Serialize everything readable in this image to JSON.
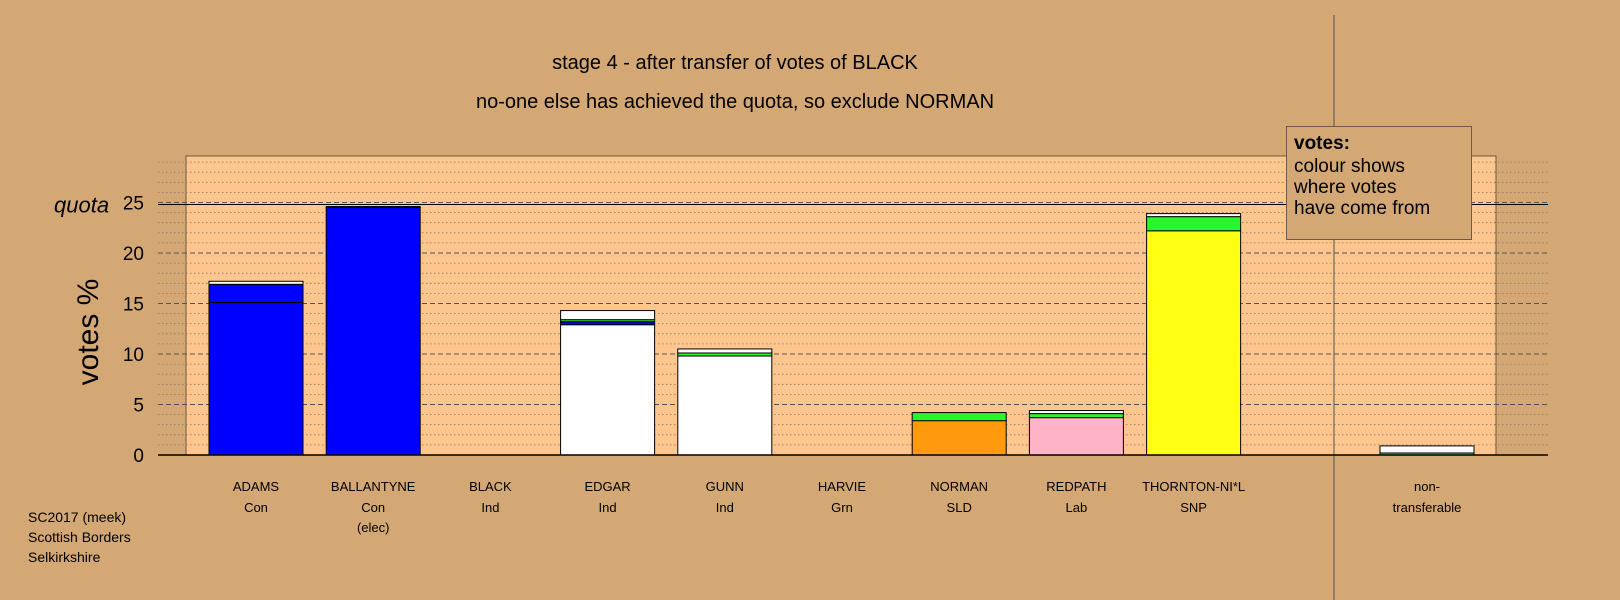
{
  "title_lines": [
    "stage 4 - after transfer of votes of BLACK",
    "no-one else has achieved the quota, so exclude NORMAN"
  ],
  "footer_lines": [
    "SC2017 (meek)",
    "Scottish Borders",
    "Selkirkshire"
  ],
  "legend": {
    "heading": "votes:",
    "lines": [
      "colour shows",
      "where votes",
      "have come from"
    ]
  },
  "colors": {
    "background": "#d4a874",
    "plot_area": "#fdc68e",
    "Con": "#0000ff",
    "Ind": "#ffffff",
    "SLD": "#ff9a0e",
    "Lab": "#ffb3c7",
    "SNP": "#ffff14",
    "Grn": "#2bf52b"
  },
  "chart_data": {
    "type": "bar",
    "stacked": true,
    "ylabel": "votes %",
    "quota_label": "quota",
    "quota": 24.8,
    "ylim": [
      0,
      30
    ],
    "yticks": [
      0,
      5,
      10,
      15,
      20,
      25
    ],
    "grid": true,
    "categories": [
      {
        "name": "ADAMS",
        "party": "Con",
        "note": ""
      },
      {
        "name": "BALLANTYNE",
        "party": "Con",
        "note": "(elec)"
      },
      {
        "name": "BLACK",
        "party": "Ind",
        "note": ""
      },
      {
        "name": "EDGAR",
        "party": "Ind",
        "note": ""
      },
      {
        "name": "GUNN",
        "party": "Ind",
        "note": ""
      },
      {
        "name": "HARVIE",
        "party": "Grn",
        "note": ""
      },
      {
        "name": "NORMAN",
        "party": "SLD",
        "note": ""
      },
      {
        "name": "REDPATH",
        "party": "Lab",
        "note": ""
      },
      {
        "name": "THORNTON-NI*L",
        "party": "SNP",
        "note": ""
      }
    ],
    "nontransferable": {
      "label_lines": [
        "non-",
        "transferable"
      ],
      "segments": [
        {
          "source": "Grn",
          "value": 0.2
        },
        {
          "source": "Ind",
          "value": 0.7
        }
      ]
    },
    "bars": [
      {
        "segments": [
          {
            "source": "Con",
            "value": 15.1
          },
          {
            "source": "Con",
            "value": 1.8
          },
          {
            "source": "Ind",
            "value": 0.3
          }
        ]
      },
      {
        "segments": [
          {
            "source": "Con",
            "value": 24.5
          },
          {
            "source": "Ind",
            "value": 0.1
          }
        ]
      },
      {
        "segments": []
      },
      {
        "segments": [
          {
            "source": "Ind",
            "value": 12.9
          },
          {
            "source": "Con",
            "value": 0.3
          },
          {
            "source": "Grn",
            "value": 0.2
          },
          {
            "source": "Ind",
            "value": 0.9
          }
        ]
      },
      {
        "segments": [
          {
            "source": "Ind",
            "value": 9.8
          },
          {
            "source": "Grn",
            "value": 0.3
          },
          {
            "source": "Ind",
            "value": 0.4
          }
        ]
      },
      {
        "segments": []
      },
      {
        "segments": [
          {
            "source": "SLD",
            "value": 3.4
          },
          {
            "source": "Grn",
            "value": 0.8
          }
        ]
      },
      {
        "segments": [
          {
            "source": "Lab",
            "value": 3.7
          },
          {
            "source": "Grn",
            "value": 0.4
          },
          {
            "source": "Ind",
            "value": 0.3
          }
        ]
      },
      {
        "segments": [
          {
            "source": "SNP",
            "value": 22.2
          },
          {
            "source": "Grn",
            "value": 1.4
          },
          {
            "source": "Ind",
            "value": 0.3
          }
        ]
      }
    ]
  }
}
